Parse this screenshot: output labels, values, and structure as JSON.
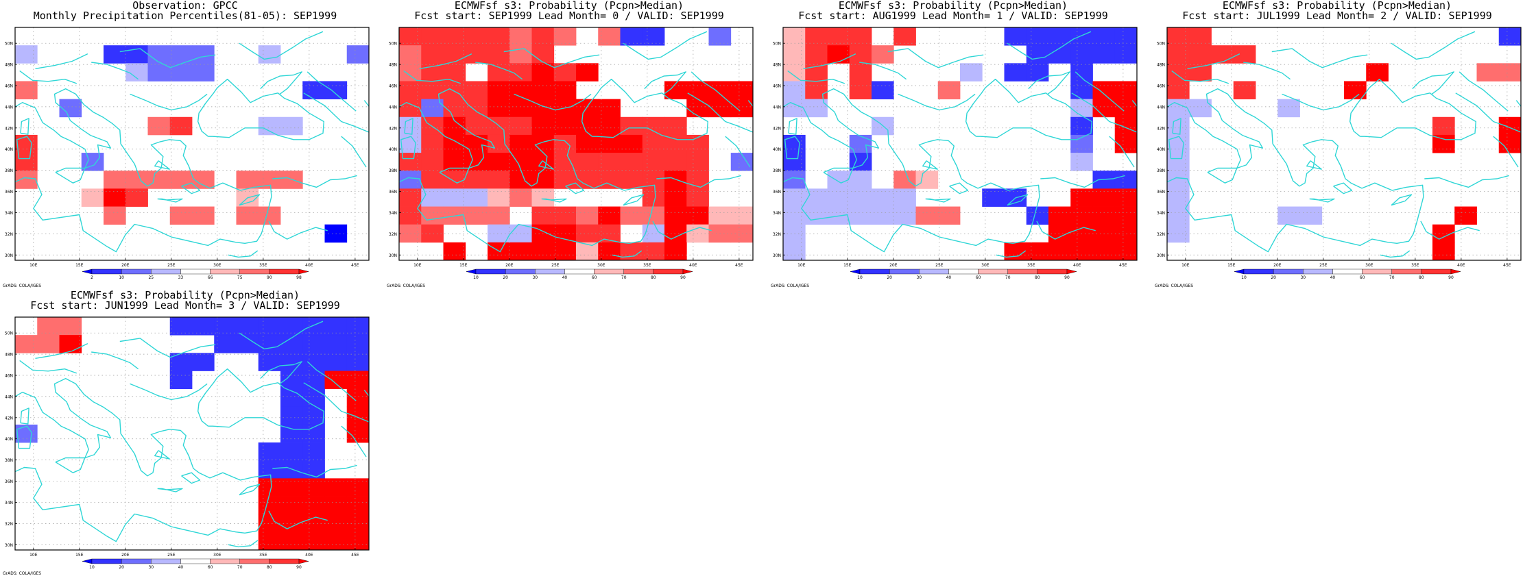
{
  "credit": "GrADS: COLA/IGES",
  "map": {
    "lat_labels": [
      "30N",
      "32N",
      "34N",
      "36N",
      "38N",
      "40N",
      "42N",
      "44N",
      "46N",
      "48N",
      "50N"
    ],
    "lon_labels": [
      "10E",
      "15E",
      "20E",
      "25E",
      "30E",
      "35E",
      "40E",
      "45E"
    ]
  },
  "colorbars": {
    "observation": {
      "levels": [
        "2",
        "10",
        "25",
        "33",
        "66",
        "75",
        "90",
        "98"
      ],
      "colors": [
        "#0000ff",
        "#3333ff",
        "#6e6eff",
        "#b8b8ff",
        "#ffffff",
        "#ffb8b8",
        "#ff6e6e",
        "#ff3333",
        "#ff0000"
      ]
    },
    "forecast": {
      "levels": [
        "10",
        "20",
        "30",
        "40",
        "60",
        "70",
        "80",
        "90"
      ],
      "colors": [
        "#0000ff",
        "#3333ff",
        "#6e6eff",
        "#b8b8ff",
        "#ffffff",
        "#ffb8b8",
        "#ff6e6e",
        "#ff3333",
        "#ff0000"
      ]
    }
  },
  "panels": [
    {
      "line1": "Observation: GPCC",
      "line2": "Monthly Precipitation Percentiles(81-05): SEP1999",
      "colorbar": "observation",
      "grid": [
        "4444444444444444",
        "3444112224434442",
        "4444432224444444",
        "6444444444444114",
        "4424444444444444",
        "4444446744433444",
        "7444444444444444",
        "7442444444444444",
        "6444666664666444",
        "4445874444544444",
        "4444644664664444",
        "4444444444444404",
        "4444444444444444"
      ]
    },
    {
      "line1": "ECMWFsf s3: Probability (Pcpn>Median)",
      "line2": "Fcst start: SEP1999  Lead Month= 0 / VALID: SEP1999",
      "colorbar": "forecast",
      "grid": [
        "7777767646114424",
        "6777767444444444",
        "6774778784444444",
        "7777888844448888",
        "7277888888444888",
        "3787778888777444",
        "3788788788877744",
        "7788888777777742",
        "2777788777778744",
        "7333565444478744",
        "7666647768668855",
        "6744338877438566",
        "4484888858778444"
      ]
    },
    {
      "line1": "ECMWFsf s3: Probability (Pcpn>Median)",
      "line2": "Fcst start: AUG1999  Lead Month= 1 / VALID: SEP1999",
      "colorbar": "forecast",
      "grid": [
        "5777474444111111",
        "5787644444411111",
        "5747444434114144",
        "3747144644444188",
        "3344444444444388",
        "4444344444444148",
        "1442444444444248",
        "1441444444444344",
        "2433465444444411",
        "3333334441144888",
        "3333336644418888",
        "3444444444448888",
        "3444444444888888"
      ]
    },
    {
      "line1": "ECMWFsf s3: Probability (Pcpn>Median)",
      "line2": "Fcst start: JUL1999  Lead Month= 2 / VALID: SEP1999",
      "colorbar": "forecast",
      "grid": [
        "7744444444444441",
        "7777444444444444",
        "7744444448444466",
        "7447444484444444",
        "3344434444444444",
        "3444444444447448",
        "3444444444448448",
        "3444444444444444",
        "3444444444444444",
        "3444444444444444",
        "3444433444444844",
        "3444444444448444",
        "4444444444448444"
      ]
    },
    {
      "line1": "ECMWFsf s3: Probability (Pcpn>Median)",
      "line2": "Fcst start: JUN1999  Lead Month= 3 / VALID: SEP1999",
      "colorbar": "forecast",
      "grid": [
        "4664444111111111",
        "6684444441111111",
        "4444444114411111",
        "4444444144441188",
        "4444444444441148",
        "4444444444441148",
        "2444444444441148",
        "4444444444411144",
        "4444444444411144",
        "4444444444488888",
        "4444444444488888",
        "4444444444488888",
        "4444444444488888"
      ]
    }
  ]
}
